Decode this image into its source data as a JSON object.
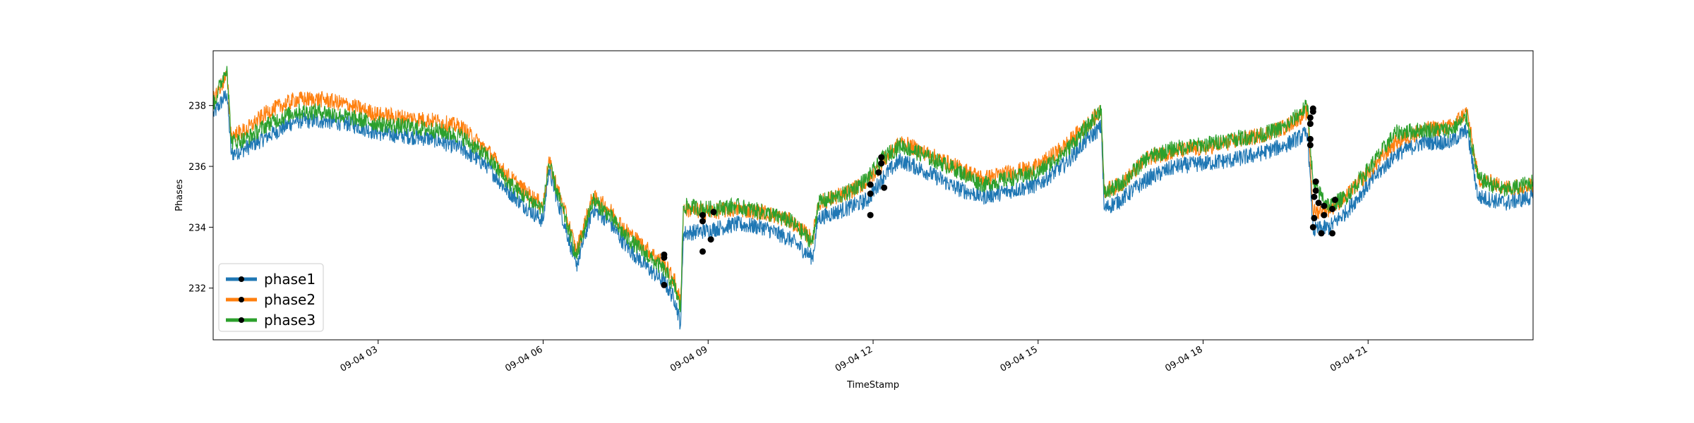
{
  "chart_data": {
    "type": "line",
    "title": "",
    "xlabel": "TimeStamp",
    "ylabel": "Phases",
    "xlim_hours": [
      0,
      24
    ],
    "ylim": [
      230.3,
      239.8
    ],
    "x_ticks": [
      {
        "hour": 3,
        "label": "09-04 03"
      },
      {
        "hour": 6,
        "label": "09-04 06"
      },
      {
        "hour": 9,
        "label": "09-04 09"
      },
      {
        "hour": 12,
        "label": "09-04 12"
      },
      {
        "hour": 15,
        "label": "09-04 15"
      },
      {
        "hour": 18,
        "label": "09-04 18"
      },
      {
        "hour": 21,
        "label": "09-04 21"
      }
    ],
    "y_ticks": [
      232,
      234,
      236,
      238
    ],
    "grid": false,
    "legend_position": "lower-left",
    "legend": [
      "phase1",
      "phase2",
      "phase3"
    ],
    "series": [
      {
        "name": "phase1",
        "color": "#1f77b4",
        "points": [
          [
            0.0,
            237.7
          ],
          [
            0.25,
            238.4
          ],
          [
            0.33,
            236.4
          ],
          [
            0.6,
            236.6
          ],
          [
            1.0,
            237.0
          ],
          [
            1.5,
            237.5
          ],
          [
            2.0,
            237.5
          ],
          [
            2.5,
            237.4
          ],
          [
            3.0,
            237.1
          ],
          [
            3.5,
            237.0
          ],
          [
            4.0,
            236.9
          ],
          [
            4.5,
            236.6
          ],
          [
            5.0,
            236.0
          ],
          [
            5.3,
            235.3
          ],
          [
            5.6,
            234.8
          ],
          [
            6.0,
            234.2
          ],
          [
            6.1,
            235.9
          ],
          [
            6.5,
            233.4
          ],
          [
            6.6,
            232.7
          ],
          [
            6.9,
            234.6
          ],
          [
            7.2,
            234.2
          ],
          [
            7.5,
            233.4
          ],
          [
            8.0,
            232.5
          ],
          [
            8.2,
            232.2
          ],
          [
            8.4,
            231.6
          ],
          [
            8.5,
            230.8
          ],
          [
            8.55,
            233.8
          ],
          [
            9.0,
            233.9
          ],
          [
            9.5,
            234.1
          ],
          [
            10.0,
            234.0
          ],
          [
            10.5,
            233.6
          ],
          [
            10.9,
            233.0
          ],
          [
            11.0,
            234.3
          ],
          [
            11.5,
            234.6
          ],
          [
            11.9,
            234.9
          ],
          [
            12.2,
            235.7
          ],
          [
            12.5,
            236.2
          ],
          [
            13.0,
            235.8
          ],
          [
            13.5,
            235.3
          ],
          [
            14.0,
            235.0
          ],
          [
            14.5,
            235.2
          ],
          [
            15.0,
            235.4
          ],
          [
            15.5,
            236.1
          ],
          [
            15.9,
            236.9
          ],
          [
            16.15,
            237.3
          ],
          [
            16.2,
            234.6
          ],
          [
            16.5,
            234.9
          ],
          [
            17.0,
            235.6
          ],
          [
            17.5,
            236.0
          ],
          [
            18.0,
            236.1
          ],
          [
            18.5,
            236.2
          ],
          [
            19.0,
            236.4
          ],
          [
            19.5,
            236.7
          ],
          [
            19.9,
            237.1
          ],
          [
            20.0,
            233.9
          ],
          [
            20.3,
            234.0
          ],
          [
            20.6,
            234.5
          ],
          [
            21.0,
            235.4
          ],
          [
            21.5,
            236.4
          ],
          [
            22.0,
            236.8
          ],
          [
            22.5,
            236.8
          ],
          [
            22.8,
            237.2
          ],
          [
            23.0,
            235.0
          ],
          [
            23.5,
            234.8
          ],
          [
            24.0,
            235.0
          ]
        ]
      },
      {
        "name": "phase2",
        "color": "#ff7f0e",
        "points": [
          [
            0.0,
            238.2
          ],
          [
            0.25,
            239.0
          ],
          [
            0.33,
            237.0
          ],
          [
            0.6,
            237.2
          ],
          [
            1.0,
            237.8
          ],
          [
            1.5,
            238.2
          ],
          [
            2.0,
            238.2
          ],
          [
            2.5,
            238.0
          ],
          [
            3.0,
            237.7
          ],
          [
            3.5,
            237.6
          ],
          [
            4.0,
            237.5
          ],
          [
            4.5,
            237.3
          ],
          [
            5.0,
            236.5
          ],
          [
            5.3,
            235.8
          ],
          [
            5.6,
            235.3
          ],
          [
            6.0,
            234.7
          ],
          [
            6.1,
            236.2
          ],
          [
            6.5,
            233.9
          ],
          [
            6.6,
            233.2
          ],
          [
            6.9,
            235.0
          ],
          [
            7.2,
            234.6
          ],
          [
            7.5,
            233.9
          ],
          [
            8.0,
            233.1
          ],
          [
            8.2,
            232.8
          ],
          [
            8.4,
            232.2
          ],
          [
            8.5,
            231.5
          ],
          [
            8.55,
            234.6
          ],
          [
            9.0,
            234.5
          ],
          [
            9.5,
            234.6
          ],
          [
            10.0,
            234.5
          ],
          [
            10.5,
            234.2
          ],
          [
            10.9,
            233.6
          ],
          [
            11.0,
            234.8
          ],
          [
            11.5,
            235.1
          ],
          [
            11.9,
            235.5
          ],
          [
            12.2,
            236.2
          ],
          [
            12.5,
            236.8
          ],
          [
            13.0,
            236.4
          ],
          [
            13.5,
            236.0
          ],
          [
            14.0,
            235.6
          ],
          [
            14.5,
            235.8
          ],
          [
            15.0,
            236.0
          ],
          [
            15.5,
            236.7
          ],
          [
            15.9,
            237.4
          ],
          [
            16.15,
            237.8
          ],
          [
            16.2,
            235.2
          ],
          [
            16.5,
            235.4
          ],
          [
            17.0,
            236.3
          ],
          [
            17.5,
            236.5
          ],
          [
            18.0,
            236.6
          ],
          [
            18.5,
            236.8
          ],
          [
            19.0,
            237.0
          ],
          [
            19.5,
            237.3
          ],
          [
            19.9,
            237.8
          ],
          [
            20.0,
            234.5
          ],
          [
            20.3,
            234.6
          ],
          [
            20.6,
            235.0
          ],
          [
            21.0,
            235.8
          ],
          [
            21.5,
            236.8
          ],
          [
            22.0,
            237.2
          ],
          [
            22.5,
            237.3
          ],
          [
            22.8,
            237.8
          ],
          [
            23.0,
            235.6
          ],
          [
            23.5,
            235.3
          ],
          [
            24.0,
            235.4
          ]
        ]
      },
      {
        "name": "phase3",
        "color": "#2ca02c",
        "points": [
          [
            0.0,
            238.0
          ],
          [
            0.25,
            239.3
          ],
          [
            0.33,
            236.8
          ],
          [
            0.6,
            236.9
          ],
          [
            1.0,
            237.4
          ],
          [
            1.5,
            237.8
          ],
          [
            2.0,
            237.8
          ],
          [
            2.5,
            237.6
          ],
          [
            3.0,
            237.4
          ],
          [
            3.5,
            237.3
          ],
          [
            4.0,
            237.2
          ],
          [
            4.5,
            237.0
          ],
          [
            5.0,
            236.3
          ],
          [
            5.3,
            235.6
          ],
          [
            5.6,
            235.1
          ],
          [
            6.0,
            234.6
          ],
          [
            6.1,
            236.1
          ],
          [
            6.5,
            233.7
          ],
          [
            6.6,
            233.0
          ],
          [
            6.9,
            234.9
          ],
          [
            7.2,
            234.4
          ],
          [
            7.5,
            233.7
          ],
          [
            8.0,
            232.9
          ],
          [
            8.2,
            232.6
          ],
          [
            8.4,
            232.0
          ],
          [
            8.5,
            231.3
          ],
          [
            8.55,
            234.7
          ],
          [
            9.0,
            234.6
          ],
          [
            9.5,
            234.7
          ],
          [
            10.0,
            234.5
          ],
          [
            10.5,
            234.2
          ],
          [
            10.9,
            233.5
          ],
          [
            11.0,
            234.8
          ],
          [
            11.5,
            235.1
          ],
          [
            11.9,
            235.6
          ],
          [
            12.2,
            236.3
          ],
          [
            12.5,
            236.7
          ],
          [
            13.0,
            236.3
          ],
          [
            13.5,
            235.9
          ],
          [
            14.0,
            235.4
          ],
          [
            14.5,
            235.6
          ],
          [
            15.0,
            235.8
          ],
          [
            15.5,
            236.5
          ],
          [
            15.9,
            237.3
          ],
          [
            16.15,
            237.9
          ],
          [
            16.2,
            235.1
          ],
          [
            16.5,
            235.4
          ],
          [
            17.0,
            236.3
          ],
          [
            17.5,
            236.6
          ],
          [
            18.0,
            236.7
          ],
          [
            18.5,
            236.9
          ],
          [
            19.0,
            237.0
          ],
          [
            19.5,
            237.3
          ],
          [
            19.9,
            238.0
          ],
          [
            20.0,
            235.4
          ],
          [
            20.3,
            234.7
          ],
          [
            20.6,
            235.0
          ],
          [
            21.0,
            235.9
          ],
          [
            21.5,
            237.1
          ],
          [
            22.0,
            237.2
          ],
          [
            22.5,
            237.2
          ],
          [
            22.8,
            237.6
          ],
          [
            23.0,
            235.6
          ],
          [
            23.5,
            235.2
          ],
          [
            24.0,
            235.5
          ]
        ]
      }
    ],
    "anomaly_markers": [
      [
        8.2,
        232.1
      ],
      [
        8.2,
        233.0
      ],
      [
        8.2,
        233.1
      ],
      [
        8.9,
        233.2
      ],
      [
        8.9,
        234.2
      ],
      [
        8.9,
        234.4
      ],
      [
        9.05,
        233.6
      ],
      [
        9.1,
        234.5
      ],
      [
        11.95,
        234.4
      ],
      [
        11.95,
        235.1
      ],
      [
        11.95,
        235.4
      ],
      [
        12.1,
        235.8
      ],
      [
        12.15,
        236.1
      ],
      [
        12.15,
        236.3
      ],
      [
        12.2,
        235.3
      ],
      [
        19.95,
        236.7
      ],
      [
        19.95,
        236.9
      ],
      [
        19.95,
        237.4
      ],
      [
        19.95,
        237.6
      ],
      [
        20.0,
        237.8
      ],
      [
        20.0,
        237.9
      ],
      [
        20.0,
        234.0
      ],
      [
        20.02,
        234.3
      ],
      [
        20.02,
        235.0
      ],
      [
        20.05,
        235.2
      ],
      [
        20.05,
        235.5
      ],
      [
        20.1,
        234.8
      ],
      [
        20.15,
        233.8
      ],
      [
        20.2,
        234.4
      ],
      [
        20.2,
        234.7
      ],
      [
        20.35,
        233.8
      ],
      [
        20.35,
        234.6
      ],
      [
        20.4,
        234.9
      ]
    ]
  }
}
